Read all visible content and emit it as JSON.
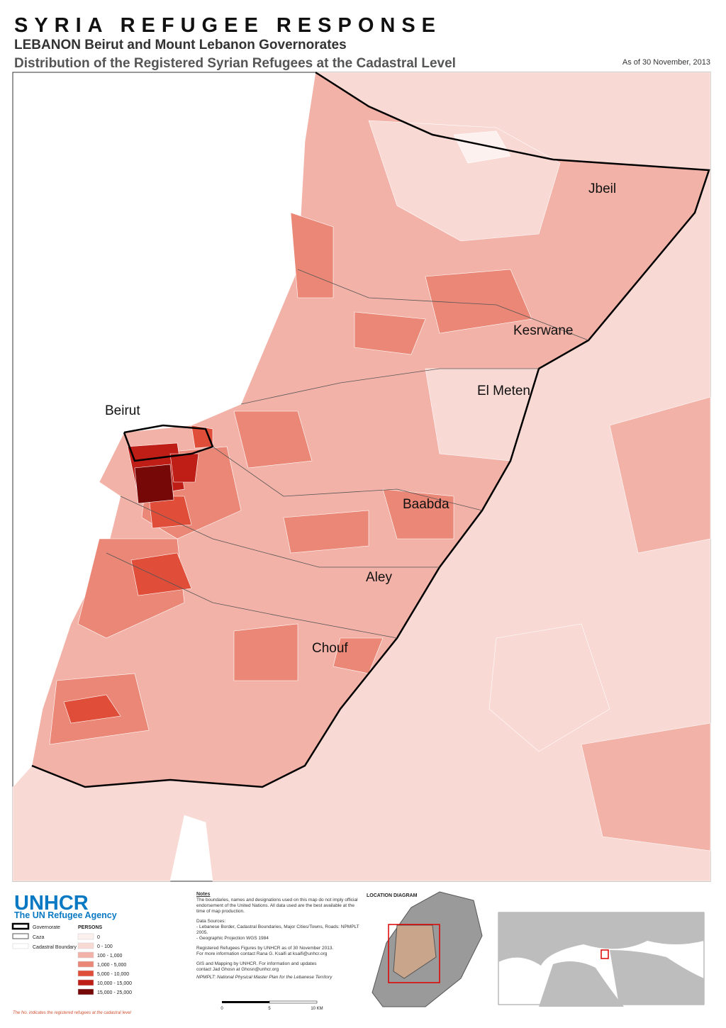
{
  "header": {
    "title": "SYRIA REFUGEE RESPONSE",
    "subtitle": "LEBANON  Beirut and Mount Lebanon Governorates",
    "map_title": "Distribution of the Registered Syrian Refugees at the Cadastral Level",
    "date": "As of 30 November, 2013"
  },
  "map": {
    "caza_labels": [
      "Jbeil",
      "Kesrwane",
      "El Meten",
      "Beirut",
      "Baabda",
      "Aley",
      "Chouf"
    ]
  },
  "logo": {
    "name": "UNHCR",
    "tagline": "The UN Refugee Agency"
  },
  "legend": {
    "boundaries": [
      "Governorate",
      "Caza",
      "Cadastral Boundary"
    ],
    "persons_title": "PERSONS",
    "classes": [
      {
        "label": "0",
        "color": "#fdf1ef"
      },
      {
        "label": "0 - 100",
        "color": "#f9d9d4"
      },
      {
        "label": "100 - 1,000",
        "color": "#f3b2a7"
      },
      {
        "label": "1,000 - 5,000",
        "color": "#ea8776"
      },
      {
        "label": "5,000 - 10,000",
        "color": "#e04e3a"
      },
      {
        "label": "10,000 - 15,000",
        "color": "#bf1e17"
      },
      {
        "label": "15,000 - 25,000",
        "color": "#760808"
      }
    ]
  },
  "notes": {
    "title": "Notes",
    "paragraphs": [
      "The boundaries, names and designations used on this map do not imply official endorsement of the United Nations. All data used are the best available at the time of map production.",
      "Data Sources:",
      "- Lebanese Border, Cadastral Boundaries, Major Cities/Towns, Roads: NPMPLT 2005.",
      "- Geographic Projection WGS 1984",
      "Registered Refugees Figures by UNHCR as of 30 November 2013.",
      "For more information contact Rana G. Ksaifi at ksaifi@unhcr.org",
      "GIS and Mapping by UNHCR. For information and updates",
      "contact Jad Ghosn at Ghosn@unhcr.org",
      "NPMPLT: National Physical Master Plan for the Lebanese Territory"
    ]
  },
  "location": {
    "title": "LOCATION DIAGRAM"
  },
  "scale": {
    "labels": [
      "0",
      "5",
      "10 KM"
    ]
  },
  "footnote": "The No. indicates the registered refugees at the cadastral level"
}
